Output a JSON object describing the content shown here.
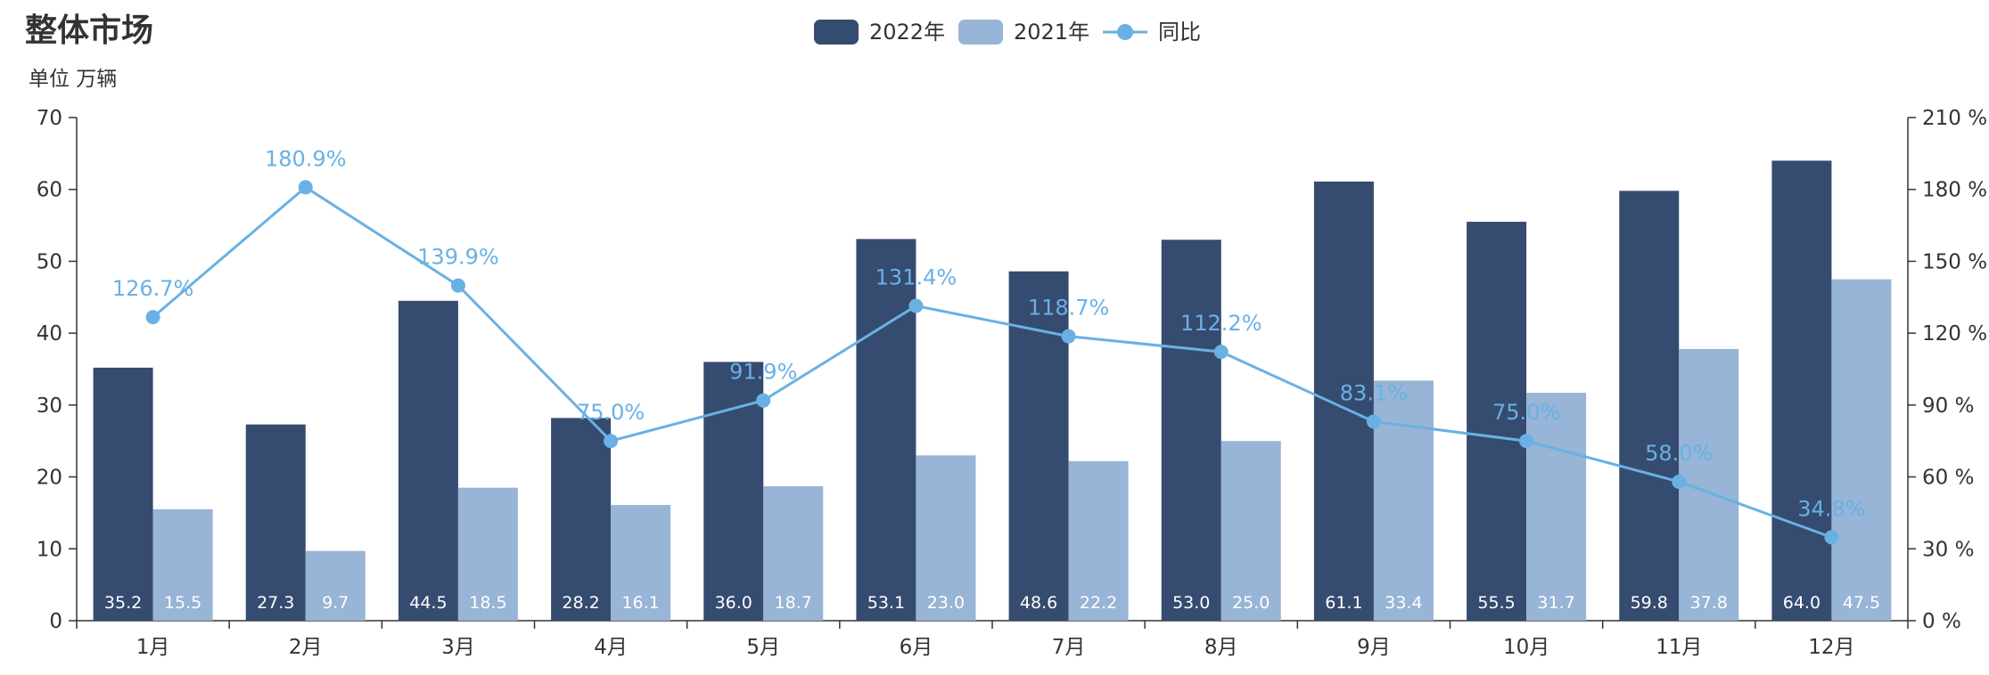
{
  "chart_data": {
    "type": "bar",
    "title": "整体市场",
    "unit_label": "单位 万辆",
    "categories": [
      "1月",
      "2月",
      "3月",
      "4月",
      "5月",
      "6月",
      "7月",
      "8月",
      "9月",
      "10月",
      "11月",
      "12月"
    ],
    "series": [
      {
        "name": "2022年",
        "type": "bar",
        "axis": "left",
        "color": "#364b70",
        "values": [
          35.2,
          27.3,
          44.5,
          28.2,
          36.0,
          53.1,
          48.6,
          53.0,
          61.1,
          55.5,
          59.8,
          64.0
        ],
        "labels": [
          "35.2",
          "27.3",
          "44.5",
          "28.2",
          "36.0",
          "53.1",
          "48.6",
          "53.0",
          "61.1",
          "55.5",
          "59.8",
          "64.0"
        ]
      },
      {
        "name": "2021年",
        "type": "bar",
        "axis": "left",
        "color": "#98b4d6",
        "values": [
          15.5,
          9.7,
          18.5,
          16.1,
          18.7,
          23.0,
          22.2,
          25.0,
          33.4,
          31.7,
          37.8,
          47.5
        ],
        "labels": [
          "15.5",
          "9.7",
          "18.5",
          "16.1",
          "18.7",
          "23.0",
          "22.2",
          "25.0",
          "33.4",
          "31.7",
          "37.8",
          "47.5"
        ]
      },
      {
        "name": "同比",
        "type": "line",
        "axis": "right",
        "color": "#69b1e4",
        "values": [
          126.7,
          180.9,
          139.9,
          75.0,
          91.9,
          131.4,
          118.7,
          112.2,
          83.1,
          75.0,
          58.0,
          34.8
        ],
        "labels": [
          "126.7%",
          "180.9%",
          "139.9%",
          "75.0%",
          "91.9%",
          "131.4%",
          "118.7%",
          "112.2%",
          "83.1%",
          "75.0%",
          "58.0%",
          "34.8%"
        ]
      }
    ],
    "y_left": {
      "min": 0,
      "max": 70,
      "ticks": [
        "0",
        "10",
        "20",
        "30",
        "40",
        "50",
        "60",
        "70"
      ]
    },
    "y_right": {
      "min": 0,
      "max": 210,
      "ticks": [
        "0 %",
        "30 %",
        "60 %",
        "90 %",
        "120 %",
        "150 %",
        "180 %",
        "210 %"
      ]
    },
    "legend_placement": "top-center",
    "grid": false,
    "colors": {
      "axis": "#333333"
    }
  }
}
